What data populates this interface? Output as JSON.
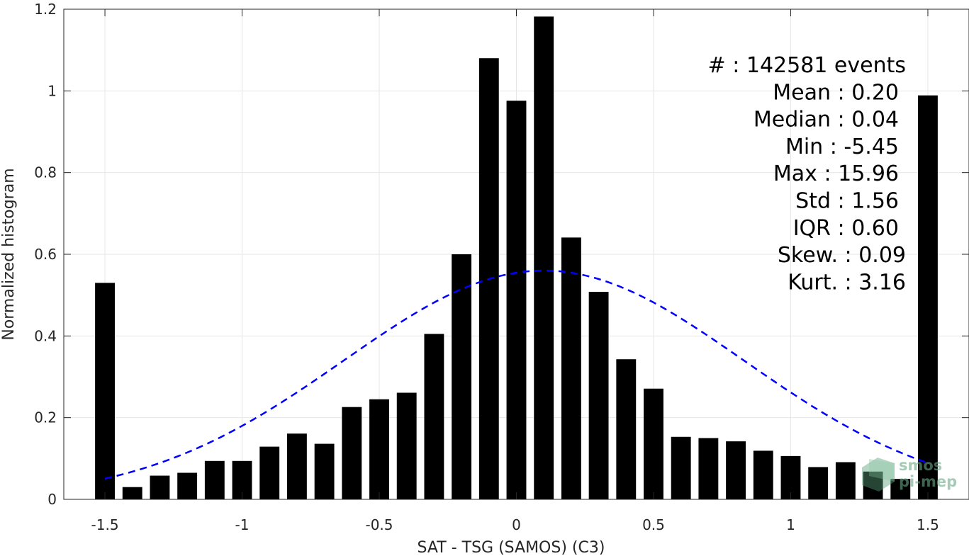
{
  "chart_data": {
    "type": "bar",
    "xlabel": "SAT - TSG (SAMOS) (C3)",
    "ylabel": "Normalized histogram",
    "xlim": [
      -1.65,
      1.65
    ],
    "ylim": [
      0,
      1.2
    ],
    "xticks": [
      -1.5,
      -1,
      -0.5,
      0,
      0.5,
      1,
      1.5
    ],
    "xtick_labels": [
      "-1.5",
      "-1",
      "-0.5",
      "0",
      "0.5",
      "1",
      "1.5"
    ],
    "yticks": [
      0,
      0.2,
      0.4,
      0.6,
      0.8,
      1,
      1.2
    ],
    "ytick_labels": [
      "0",
      "0.2",
      "0.4",
      "0.6",
      "0.8",
      "1",
      "1.2"
    ],
    "grid": true,
    "bar_color": "#000000",
    "fit_color": "#0000ff",
    "x": [
      -1.5,
      -1.4,
      -1.3,
      -1.2,
      -1.1,
      -1.0,
      -0.9,
      -0.8,
      -0.7,
      -0.6,
      -0.5,
      -0.4,
      -0.3,
      -0.2,
      -0.1,
      0.0,
      0.1,
      0.2,
      0.3,
      0.4,
      0.5,
      0.6,
      0.7,
      0.8,
      0.9,
      1.0,
      1.1,
      1.2,
      1.3,
      1.4,
      1.5
    ],
    "values": [
      0.53,
      0.03,
      0.058,
      0.065,
      0.094,
      0.094,
      0.129,
      0.161,
      0.136,
      0.226,
      0.245,
      0.261,
      0.405,
      0.6,
      1.08,
      0.976,
      1.182,
      0.641,
      0.508,
      0.343,
      0.271,
      0.153,
      0.15,
      0.142,
      0.119,
      0.106,
      0.079,
      0.091,
      0.068,
      0.05,
      0.989
    ],
    "fit": {
      "style": "dashed",
      "mean": 0.1,
      "sigma": 0.73,
      "amplitude": 0.56,
      "x_range": [
        -1.5,
        1.5
      ]
    },
    "annotations": [
      "#  : 142581 events",
      "Mean : 0.20",
      "Median : 0.04",
      "Min : -5.45",
      "Max : 15.96",
      "Std : 1.56",
      "IQR : 0.60",
      "Skew. : 0.09",
      "Kurt. : 3.16"
    ]
  },
  "logo": {
    "line1": "smos",
    "line2": "pi-mep"
  }
}
